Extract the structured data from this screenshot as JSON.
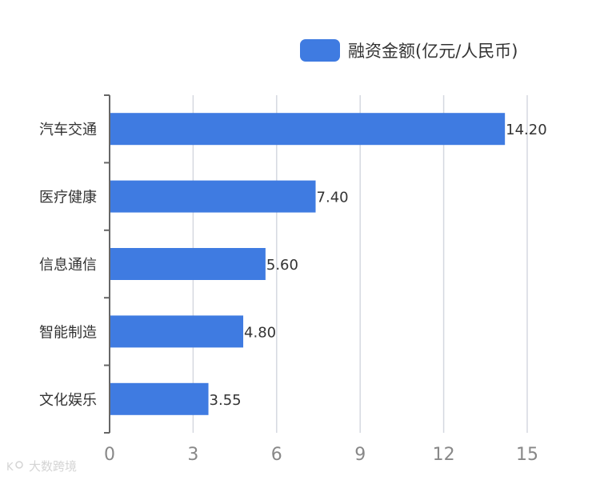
{
  "legend": {
    "label": "融资金额(亿元/人民币)"
  },
  "colors": {
    "bar": "#3f7be1",
    "grid": "#d5d8e0",
    "axis": "#666666",
    "tick": "#888888",
    "text": "#333333"
  },
  "watermark": {
    "text": "大数跨境",
    "icon": "kr-logo-icon"
  },
  "chart_data": {
    "type": "bar",
    "orientation": "horizontal",
    "categories": [
      "汽车交通",
      "医疗健康",
      "信息通信",
      "智能制造",
      "文化娱乐"
    ],
    "series": [
      {
        "name": "融资金额(亿元/人民币)",
        "values": [
          14.2,
          7.4,
          5.6,
          4.8,
          3.55
        ]
      }
    ],
    "value_labels": [
      "14.20",
      "7.40",
      "5.60",
      "4.80",
      "3.55"
    ],
    "xlim": [
      0,
      15
    ],
    "xticks": [
      0,
      3,
      6,
      9,
      12,
      15
    ],
    "grid": true,
    "legend_position": "top-right"
  }
}
